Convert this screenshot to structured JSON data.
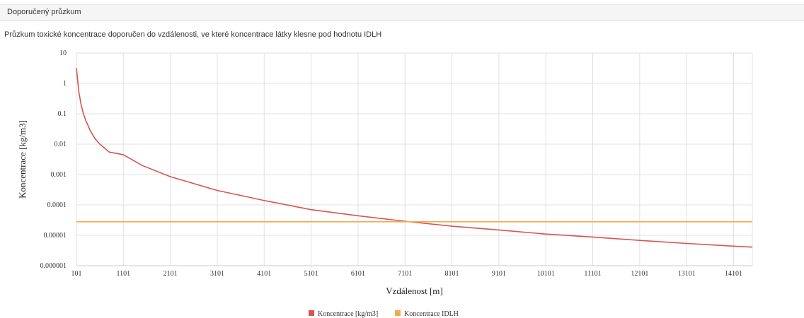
{
  "panel": {
    "title": "Doporučený průzkum"
  },
  "description": "Průzkum toxické koncentrace doporučen do vzdálenosti, ve které koncentrace látky klesne pod hodnotu IDLH",
  "colors": {
    "series_concentration": "#d9534f",
    "series_idlh": "#f0ad4e",
    "grid": "#e0e0e0"
  },
  "chart_data": {
    "type": "line",
    "xlabel": "Vzdálenost [m]",
    "ylabel": "Koncentrace [kg/m3]",
    "x_ticks": [
      101,
      1101,
      2101,
      3101,
      4101,
      5101,
      6101,
      7101,
      8101,
      9101,
      10101,
      11101,
      12101,
      13101,
      14101
    ],
    "y_ticks": [
      {
        "value": 10,
        "label": "10"
      },
      {
        "value": 1,
        "label": "1"
      },
      {
        "value": 0.1,
        "label": "0.1"
      },
      {
        "value": 0.01,
        "label": "0.01"
      },
      {
        "value": 0.001,
        "label": "0.001"
      },
      {
        "value": 0.0001,
        "label": "0.0001"
      },
      {
        "value": 1e-05,
        "label": "0.00001"
      },
      {
        "value": 1e-06,
        "label": "0.000001"
      }
    ],
    "xlim": [
      101,
      14501
    ],
    "ylim": [
      1e-06,
      10
    ],
    "y_scale": "log",
    "grid": true,
    "legend_position": "bottom-center",
    "series": [
      {
        "name": "Koncentrace [kg/m3]",
        "color": "#d9534f",
        "x": [
          101,
          150,
          200,
          250,
          300,
          400,
          500,
          600,
          800,
          1101,
          1500,
          2101,
          3101,
          4101,
          5101,
          6101,
          7101,
          8101,
          9101,
          10101,
          11101,
          12101,
          13101,
          14101,
          14501
        ],
        "y": [
          3.2,
          0.55,
          0.2,
          0.1,
          0.06,
          0.027,
          0.015,
          0.01,
          0.0055,
          0.0045,
          0.002,
          0.00085,
          0.0003,
          0.00014,
          7e-05,
          4.4e-05,
          2.9e-05,
          2e-05,
          1.5e-05,
          1.1e-05,
          8.8e-06,
          6.8e-06,
          5.4e-06,
          4.4e-06,
          4.1e-06
        ]
      },
      {
        "name": "Koncentrace IDLH",
        "color": "#f0ad4e",
        "x": [
          101,
          14501
        ],
        "y": [
          2.8e-05,
          2.8e-05
        ]
      }
    ]
  }
}
